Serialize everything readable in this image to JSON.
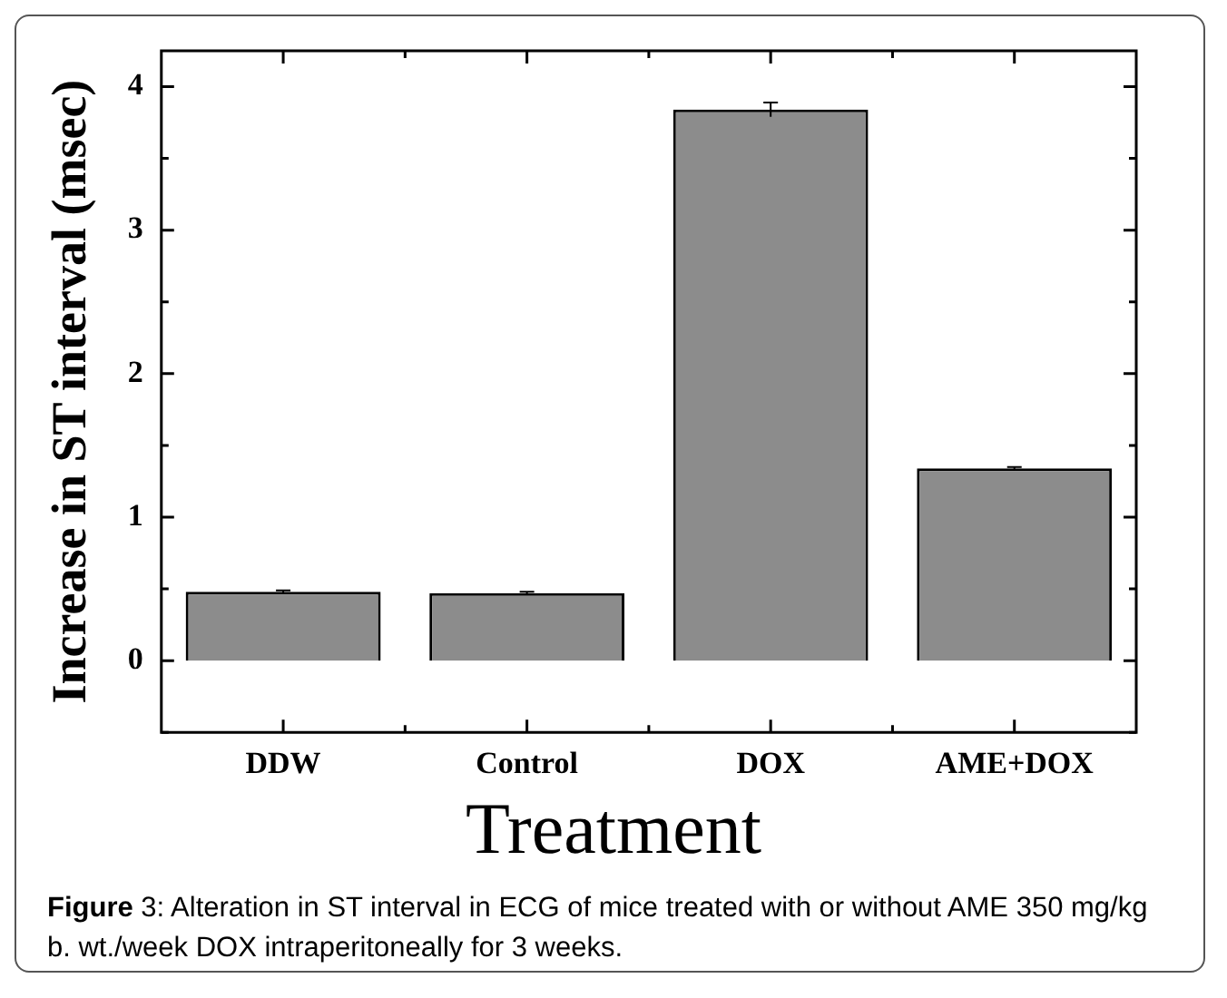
{
  "chart_data": {
    "type": "bar",
    "xlabel": "Treatment",
    "ylabel": "Increase in ST interval (msec)",
    "categories": [
      "DDW",
      "Control",
      "DOX",
      "AME+DOX"
    ],
    "values": [
      0.48,
      0.47,
      3.84,
      1.34
    ],
    "errors": [
      0.01,
      0.01,
      0.05,
      0.01
    ],
    "color": "#8c8c8c",
    "ylim": [
      -0.5,
      4.25
    ],
    "yticks": [
      {
        "value": -0.5,
        "label": null
      },
      0,
      {
        "value": 0.5,
        "label": null
      },
      1,
      {
        "value": 1.5,
        "label": null
      },
      2,
      {
        "value": 2.5,
        "label": null
      },
      3,
      {
        "value": 3.5,
        "label": null
      },
      4
    ],
    "grid": false,
    "legend": false,
    "annotations": [
      "Figure 3: Alteration in ST interval in ECG of mice treated with or without AME 350 mg/kg b. wt./week DOX intraperitoneally for 3 weeks."
    ]
  }
}
